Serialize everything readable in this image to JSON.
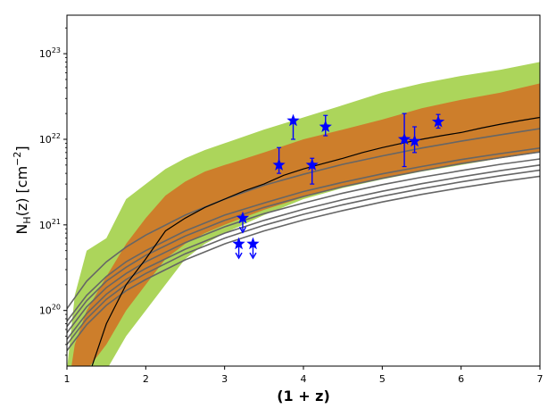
{
  "chart_data": {
    "type": "line",
    "title": "",
    "xlabel": "(1 + z)",
    "ylabel_main": "N",
    "ylabel_sub": "H",
    "ylabel_tail": "(z) [cm",
    "ylabel_exp": "−2",
    "ylabel_close": "]",
    "xlim": [
      1,
      7
    ],
    "ylim_log10": [
      19.35,
      23.45
    ],
    "yscale": "log",
    "grid": false,
    "x_ticks": [
      1,
      2,
      3,
      4,
      5,
      6,
      7
    ],
    "x_tick_labels": [
      "1",
      "2",
      "3",
      "4",
      "5",
      "6",
      "7"
    ],
    "y_ticks": [
      {
        "value": 1e+20,
        "mantissa": "10",
        "exponent": "20"
      },
      {
        "value": 1e+21,
        "mantissa": "10",
        "exponent": "21"
      },
      {
        "value": 1e+22,
        "mantissa": "10",
        "exponent": "22"
      },
      {
        "value": 1e+23,
        "mantissa": "10",
        "exponent": "23"
      }
    ],
    "colors": {
      "outer_band": "#acd55b",
      "inner_band": "#cd7e2b",
      "median": "#000000",
      "models": "#666666",
      "points": "#0000ff"
    },
    "outer_band": {
      "x": [
        1.0,
        1.1,
        1.25,
        1.5,
        1.75,
        2.0,
        2.25,
        2.5,
        2.75,
        3.0,
        3.5,
        4.0,
        4.5,
        5.0,
        5.5,
        6.0,
        6.5,
        7.0
      ],
      "upper": [
        2e+19,
        1.5e+20,
        5e+20,
        7e+20,
        2e+21,
        3e+21,
        4.5e+21,
        6e+21,
        7.5e+21,
        9e+21,
        1.3e+22,
        1.8e+22,
        2.5e+22,
        3.5e+22,
        4.5e+22,
        5.5e+22,
        6.5e+22,
        8e+22
      ],
      "lower": [
        2e+19,
        2e+19,
        2e+19,
        2e+19,
        5e+19,
        1e+20,
        2e+20,
        4e+20,
        6e+20,
        8e+20,
        1.3e+21,
        2e+21,
        2.7e+21,
        3.4e+21,
        4.2e+21,
        5e+21,
        6e+21,
        7e+21
      ]
    },
    "inner_band": {
      "x": [
        1.05,
        1.1,
        1.25,
        1.5,
        1.75,
        2.0,
        2.25,
        2.5,
        2.75,
        3.0,
        3.5,
        4.0,
        4.5,
        5.0,
        5.5,
        6.0,
        6.5,
        7.0
      ],
      "upper": [
        2e+19,
        4e+19,
        1e+20,
        2.5e+20,
        6e+20,
        1.2e+21,
        2.2e+21,
        3.2e+21,
        4.2e+21,
        5e+21,
        7e+21,
        1e+22,
        1.3e+22,
        1.7e+22,
        2.3e+22,
        2.9e+22,
        3.5e+22,
        4.5e+22
      ],
      "lower": [
        2e+19,
        2e+19,
        2e+19,
        4e+19,
        1e+20,
        2e+20,
        4e+20,
        6e+20,
        8e+20,
        1e+21,
        1.5e+21,
        2.1e+21,
        2.8e+21,
        3.5e+21,
        4.3e+21,
        5.1e+21,
        6e+21,
        7e+21
      ]
    },
    "median": {
      "x": [
        1.3,
        1.5,
        1.75,
        2.0,
        2.25,
        2.5,
        2.75,
        3.0,
        3.25,
        3.5,
        3.75,
        4.0,
        4.25,
        4.5,
        4.75,
        5.0,
        5.25,
        5.5,
        5.75,
        6.0,
        6.25,
        6.5,
        6.75,
        7.0
      ],
      "y": [
        2e+19,
        7e+19,
        2e+20,
        4e+20,
        8.5e+20,
        1.2e+21,
        1.6e+21,
        2e+21,
        2.5e+21,
        3e+21,
        3.8e+21,
        4.5e+21,
        5.2e+21,
        6e+21,
        7e+21,
        8e+21,
        9e+21,
        1e+22,
        1.1e+22,
        1.2e+22,
        1.35e+22,
        1.5e+22,
        1.65e+22,
        1.8e+22
      ]
    },
    "model_curves": {
      "x": [
        1.0,
        1.25,
        1.5,
        1.75,
        2.0,
        2.5,
        3.0,
        3.5,
        4.0,
        4.5,
        5.0,
        5.5,
        6.0,
        6.5,
        7.0
      ],
      "series": [
        {
          "y": [
            1.05e+20,
            2.2e+20,
            3.7e+20,
            5.5e+20,
            7.6e+20,
            1.3e+21,
            2e+21,
            2.9e+21,
            3.9e+21,
            5.1e+21,
            6.4e+21,
            7.9e+21,
            9.5e+21,
            1.13e+22,
            1.33e+22
          ]
        },
        {
          "y": [
            7.5e+19,
            1.5e+20,
            2.5e+20,
            3.7e+20,
            5e+20,
            8.5e+20,
            1.3e+21,
            1.8e+21,
            2.45e+21,
            3.15e+21,
            3.95e+21,
            4.8e+21,
            5.8e+21,
            6.8e+21,
            7.9e+21
          ]
        },
        {
          "y": [
            6.5e+19,
            1.3e+20,
            2.2e+20,
            3.2e+20,
            4.4e+20,
            7.4e+20,
            1.13e+21,
            1.6e+21,
            2.15e+21,
            2.8e+21,
            3.5e+21,
            4.3e+21,
            5.2e+21,
            6.1e+21,
            7.1e+21
          ]
        },
        {
          "y": [
            5.5e+19,
            1.1e+20,
            1.85e+20,
            2.7e+20,
            3.7e+20,
            6.2e+20,
            9.5e+20,
            1.35e+21,
            1.8e+21,
            2.35e+21,
            2.95e+21,
            3.6e+21,
            4.3e+21,
            5.1e+21,
            5.9e+21
          ]
        },
        {
          "y": [
            4.6e+19,
            9.2e+19,
            1.55e+20,
            2.3e+20,
            3.1e+20,
            5.2e+20,
            8e+20,
            1.13e+21,
            1.52e+21,
            1.97e+21,
            2.47e+21,
            3.03e+21,
            3.64e+21,
            4.3e+21,
            5e+21
          ]
        },
        {
          "y": [
            4e+19,
            8e+19,
            1.35e+20,
            2e+20,
            2.7e+20,
            4.6e+20,
            7e+20,
            9.9e+20,
            1.33e+21,
            1.72e+21,
            2.16e+21,
            2.65e+21,
            3.18e+21,
            3.75e+21,
            4.35e+21
          ]
        },
        {
          "y": [
            3.4e+19,
            6.8e+19,
            1.15e+20,
            1.7e+20,
            2.3e+20,
            3.9e+20,
            6e+20,
            8.5e+20,
            1.14e+21,
            1.47e+21,
            1.85e+21,
            2.27e+21,
            2.72e+21,
            3.2e+21,
            3.7e+21
          ]
        }
      ]
    },
    "measurements": [
      {
        "x": 3.69,
        "y": 5e+21,
        "y_lo": 4e+21,
        "y_hi": 8e+21
      },
      {
        "x": 3.87,
        "y": 1.65e+22,
        "y_lo": 1e+22,
        "y_hi": 1.7e+22
      },
      {
        "x": 4.11,
        "y": 5e+21,
        "y_lo": 3e+21,
        "y_hi": 6e+21
      },
      {
        "x": 4.28,
        "y": 1.4e+22,
        "y_lo": 1.1e+22,
        "y_hi": 1.9e+22
      },
      {
        "x": 5.28,
        "y": 1e+22,
        "y_lo": 4.8e+21,
        "y_hi": 2e+22
      },
      {
        "x": 5.41,
        "y": 9.5e+21,
        "y_lo": 7e+21,
        "y_hi": 1.4e+22
      },
      {
        "x": 5.71,
        "y": 1.6e+22,
        "y_lo": 1.35e+22,
        "y_hi": 1.95e+22
      }
    ],
    "upper_limits": [
      {
        "x": 3.23,
        "y": 1.2e+21
      },
      {
        "x": 3.18,
        "y": 6e+20
      },
      {
        "x": 3.36,
        "y": 6e+20
      }
    ]
  }
}
